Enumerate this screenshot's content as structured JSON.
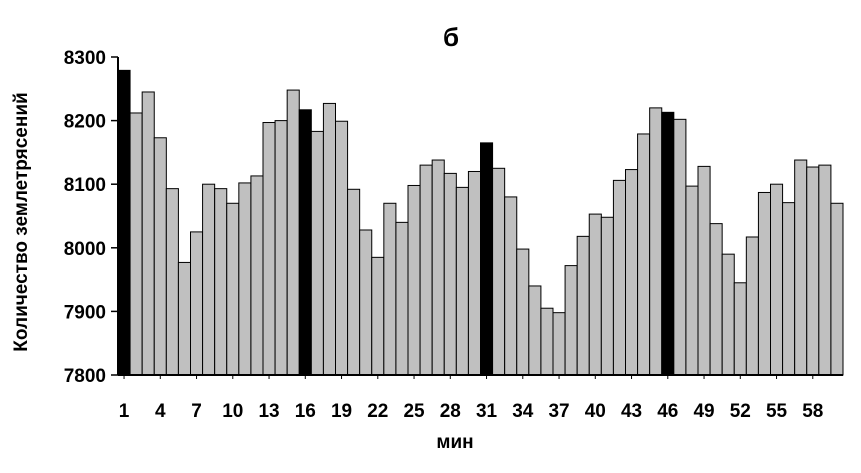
{
  "chart_data": {
    "type": "bar",
    "title": "б",
    "xlabel": "мин",
    "ylabel": "Количество землетрясений",
    "ylim": [
      7800,
      8300
    ],
    "yticks": [
      7800,
      7900,
      8000,
      8100,
      8200,
      8300
    ],
    "xtick_labels": [
      "1",
      "4",
      "7",
      "10",
      "13",
      "16",
      "19",
      "22",
      "25",
      "28",
      "31",
      "34",
      "37",
      "40",
      "43",
      "46",
      "49",
      "52",
      "55",
      "58"
    ],
    "categories": [
      1,
      2,
      3,
      4,
      5,
      6,
      7,
      8,
      9,
      10,
      11,
      12,
      13,
      14,
      15,
      16,
      17,
      18,
      19,
      20,
      21,
      22,
      23,
      24,
      25,
      26,
      27,
      28,
      29,
      30,
      31,
      32,
      33,
      34,
      35,
      36,
      37,
      38,
      39,
      40,
      41,
      42,
      43,
      44,
      45,
      46,
      47,
      48,
      49,
      50,
      51,
      52,
      53,
      54,
      55,
      56,
      57,
      58,
      59,
      60
    ],
    "values": [
      8279,
      8212,
      8245,
      8173,
      8093,
      7977,
      8025,
      8100,
      8093,
      8070,
      8102,
      8113,
      8197,
      8200,
      8248,
      8217,
      8183,
      8227,
      8199,
      8092,
      8028,
      7985,
      8070,
      8040,
      8098,
      8130,
      8138,
      8117,
      8095,
      8120,
      8165,
      8125,
      8080,
      7998,
      7940,
      7905,
      7898,
      7972,
      8018,
      8053,
      8048,
      8106,
      8123,
      8179,
      8220,
      8213,
      8202,
      8097,
      8128,
      8038,
      7990,
      7945,
      8017,
      8087,
      8100,
      8071,
      8138,
      8127,
      8130,
      8070
    ],
    "highlighted": [
      1,
      16,
      31,
      46
    ],
    "colors": {
      "normal": "#c0c0c0",
      "highlight": "#000000",
      "outline": "#000000"
    },
    "grid": false
  }
}
